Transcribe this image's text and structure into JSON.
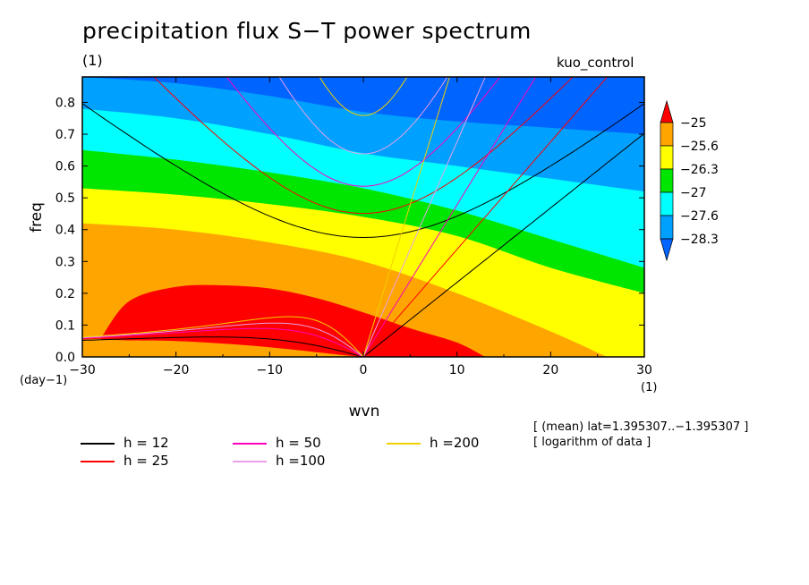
{
  "chart_data": {
    "type": "heatmap",
    "title": "precipitation flux S−T power spectrum",
    "subtitle": "(1)",
    "dataset_label": "kuo_control",
    "xlabel": "wvn",
    "ylabel": "freq",
    "x_unit": "(1)",
    "y_unit": "(day−1)",
    "xlim": [
      -30,
      30
    ],
    "ylim": [
      0,
      0.88
    ],
    "x_ticks": [
      "−30",
      "−20",
      "−10",
      "0",
      "10",
      "20",
      "30"
    ],
    "x_tick_values": [
      -30,
      -20,
      -10,
      0,
      10,
      20,
      30
    ],
    "y_ticks": [
      "0.0",
      "0.1",
      "0.2",
      "0.3",
      "0.4",
      "0.5",
      "0.6",
      "0.7",
      "0.8"
    ],
    "y_tick_values": [
      0,
      0.1,
      0.2,
      0.3,
      0.4,
      0.5,
      0.6,
      0.7,
      0.8
    ],
    "colorbar": {
      "labels": [
        "−25",
        "−25.6",
        "−26.3",
        "−27",
        "−27.6",
        "−28.3"
      ],
      "levels": [
        -25,
        -25.6,
        -26.3,
        -27,
        -27.6,
        -28.3
      ],
      "colors": [
        "#ff0000",
        "#ffa500",
        "#ffff00",
        "#00e600",
        "#00ffff",
        "#00a0ff",
        "#0064ff"
      ]
    },
    "field_levels": {
      "red_upper_at_wvn": {
        "x": [
          -28,
          -25,
          -20,
          -15,
          -10,
          -5,
          0,
          5,
          10,
          13
        ],
        "y": [
          0.06,
          0.175,
          0.22,
          0.225,
          0.215,
          0.185,
          0.14,
          0.09,
          0.045,
          0.0
        ]
      },
      "orange_upper_at_wvn": {
        "x": [
          -30,
          -20,
          -10,
          0,
          10,
          20,
          26
        ],
        "y": [
          0.42,
          0.4,
          0.36,
          0.3,
          0.2,
          0.08,
          0.0
        ]
      },
      "yellow_upper_at_wvn": {
        "x": [
          -30,
          -20,
          -10,
          0,
          10,
          20,
          30
        ],
        "y": [
          0.53,
          0.51,
          0.48,
          0.44,
          0.38,
          0.28,
          0.2
        ]
      },
      "green_upper_at_wvn": {
        "x": [
          -30,
          -20,
          -10,
          0,
          10,
          20,
          30
        ],
        "y": [
          0.65,
          0.62,
          0.58,
          0.53,
          0.46,
          0.37,
          0.28
        ]
      },
      "cyan_upper_at_wvn": {
        "x": [
          -30,
          -20,
          -10,
          0,
          10,
          20,
          30
        ],
        "y": [
          0.78,
          0.75,
          0.7,
          0.64,
          0.6,
          0.56,
          0.52
        ]
      },
      "lightblue_upper_at_wvn": {
        "x": [
          -30,
          -20,
          -10,
          0,
          10,
          20,
          30
        ],
        "y": [
          0.88,
          0.86,
          0.82,
          0.77,
          0.74,
          0.72,
          0.7
        ]
      }
    },
    "series": [
      {
        "name": "h = 12",
        "color": "#000000",
        "equivalent_depth": 12
      },
      {
        "name": "h = 25",
        "color": "#ff0000",
        "equivalent_depth": 25
      },
      {
        "name": "h = 50",
        "color": "#ff00c0",
        "equivalent_depth": 50
      },
      {
        "name": "h =100",
        "color": "#e8a0e8",
        "equivalent_depth": 100
      },
      {
        "name": "h =200",
        "color": "#f0d000",
        "equivalent_depth": 200
      }
    ],
    "notes": [
      "[ (mean) lat=1.395307..−1.395307 ]",
      "[ logarithm of data ]"
    ]
  }
}
